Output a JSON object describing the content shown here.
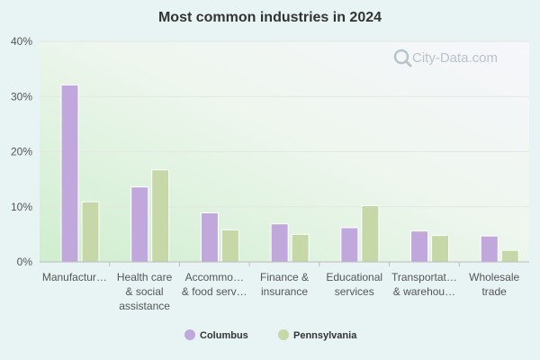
{
  "chart_data": {
    "type": "bar",
    "title": "Most common industries in 2024",
    "categories": [
      [
        "Manufactur…"
      ],
      [
        "Health care",
        "& social",
        "assistance"
      ],
      [
        "Accommo…",
        "& food serv…"
      ],
      [
        "Finance &",
        "insurance"
      ],
      [
        "Educational",
        "services"
      ],
      [
        "Transportat…",
        "& warehou…"
      ],
      [
        "Wholesale",
        "trade"
      ]
    ],
    "series": [
      {
        "name": "Columbus",
        "color": "#c0a8dc",
        "values": [
          32.1,
          13.6,
          8.9,
          6.9,
          6.2,
          5.6,
          4.7
        ]
      },
      {
        "name": "Pennsylvania",
        "color": "#c6d8a8",
        "values": [
          10.9,
          16.7,
          5.8,
          5.0,
          10.2,
          4.8,
          2.1
        ]
      }
    ],
    "ylim": [
      0,
      40
    ],
    "yticks": [
      0,
      10,
      20,
      30,
      40
    ],
    "ytick_labels": [
      "0%",
      "10%",
      "20%",
      "30%",
      "40%"
    ],
    "grid": true,
    "legend_position": "bottom-center"
  },
  "watermark": {
    "text": "City-Data.com",
    "icon": "magnifier-icon"
  }
}
